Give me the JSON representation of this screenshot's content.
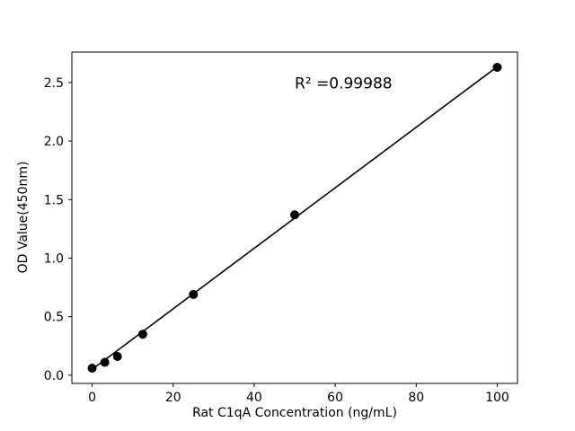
{
  "chart_data": {
    "type": "scatter",
    "title": "",
    "xlabel": "Rat C1qA Concentration (ng/mL)",
    "ylabel": "OD Value(450nm)",
    "annotation": "R² =0.99988",
    "annotation_pos": {
      "x": 50,
      "y": 2.45
    },
    "x": [
      0,
      3.125,
      6.25,
      12.5,
      25,
      50,
      100
    ],
    "y": [
      0.06,
      0.11,
      0.16,
      0.35,
      0.69,
      1.37,
      2.63
    ],
    "fit_line": {
      "x1": 0,
      "y1": 0.05,
      "x2": 100,
      "y2": 2.635
    },
    "xticks": [
      0,
      20,
      40,
      60,
      80,
      100
    ],
    "yticks": [
      0.0,
      0.5,
      1.0,
      1.5,
      2.0,
      2.5
    ],
    "xlim": [
      -5,
      105
    ],
    "ylim": [
      -0.07,
      2.76
    ],
    "grid": false,
    "legend": "none",
    "marker_color": "#000000",
    "line_color": "#000000",
    "background_color": "#ffffff"
  }
}
